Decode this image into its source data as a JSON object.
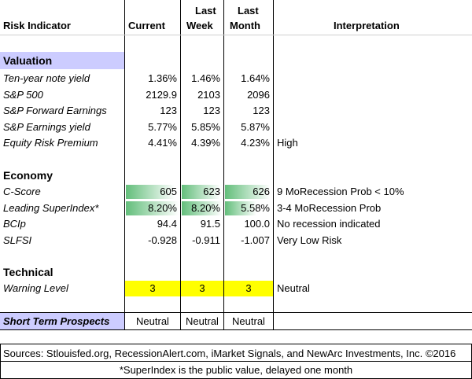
{
  "header": {
    "risk_indicator": "Risk Indicator",
    "current": "Current",
    "last_week_1": "Last",
    "last_week_2": "Week",
    "last_month_1": "Last",
    "last_month_2": "Month",
    "interpretation": "Interpretation"
  },
  "valuation": {
    "title": "Valuation",
    "rows": [
      {
        "label": "Ten-year note yield",
        "current": "1.36%",
        "week": "1.46%",
        "month": "1.64%",
        "interp": ""
      },
      {
        "label": "S&P 500",
        "current": "2129.9",
        "week": "2103",
        "month": "2096",
        "interp": ""
      },
      {
        "label": "S&P Forward Earnings",
        "current": "123",
        "week": "123",
        "month": "123",
        "interp": ""
      },
      {
        "label": "S&P Earnings yield",
        "current": "5.77%",
        "week": "5.85%",
        "month": "5.87%",
        "interp": ""
      },
      {
        "label": "Equity Risk Premium",
        "current": "4.41%",
        "week": "4.39%",
        "month": "4.23%",
        "interp": "High"
      }
    ]
  },
  "economy": {
    "title": "Economy",
    "rows": [
      {
        "label": "C-Score",
        "current": "605",
        "week": "623",
        "month": "626",
        "interp": "9 MoRecession Prob < 10%",
        "fill_current": 0.93,
        "fill_week": 0.96,
        "fill_month": 0.97
      },
      {
        "label": "Leading SuperIndex*",
        "current": "8.20%",
        "week": "8.20%",
        "month": "5.58%",
        "interp": "3-4 MoRecession Prob",
        "fill_current": 1.0,
        "fill_week": 1.0,
        "fill_month": 0.68
      },
      {
        "label": "BCIp",
        "current": "94.4",
        "week": "91.5",
        "month": "100.0",
        "interp": "No recession indicated",
        "fill_current": 0,
        "fill_week": 0,
        "fill_month": 0
      },
      {
        "label": "SLFSI",
        "current": "-0.928",
        "week": "-0.911",
        "month": "-1.007",
        "interp": "Very Low Risk",
        "fill_current": 0,
        "fill_week": 0,
        "fill_month": 0
      }
    ]
  },
  "technical": {
    "title": "Technical",
    "rows": [
      {
        "label": "Warning Level",
        "current": "3",
        "week": "3",
        "month": "3",
        "interp": "Neutral"
      }
    ]
  },
  "prospects": {
    "label": "Short Term Prospects",
    "current": "Neutral",
    "week": "Neutral",
    "month": "Neutral"
  },
  "footer": {
    "sources": "Sources: Stlouisfed.org, RecessionAlert.com, iMarket Signals, and NewArc Investments, Inc. ©2016",
    "note": "*SuperIndex is the public value, delayed one month"
  },
  "colors": {
    "section_bg": "#ccccff",
    "highlight": "#ffff00",
    "bar_start": "#63be7b",
    "bar_end": "#ffffff"
  }
}
